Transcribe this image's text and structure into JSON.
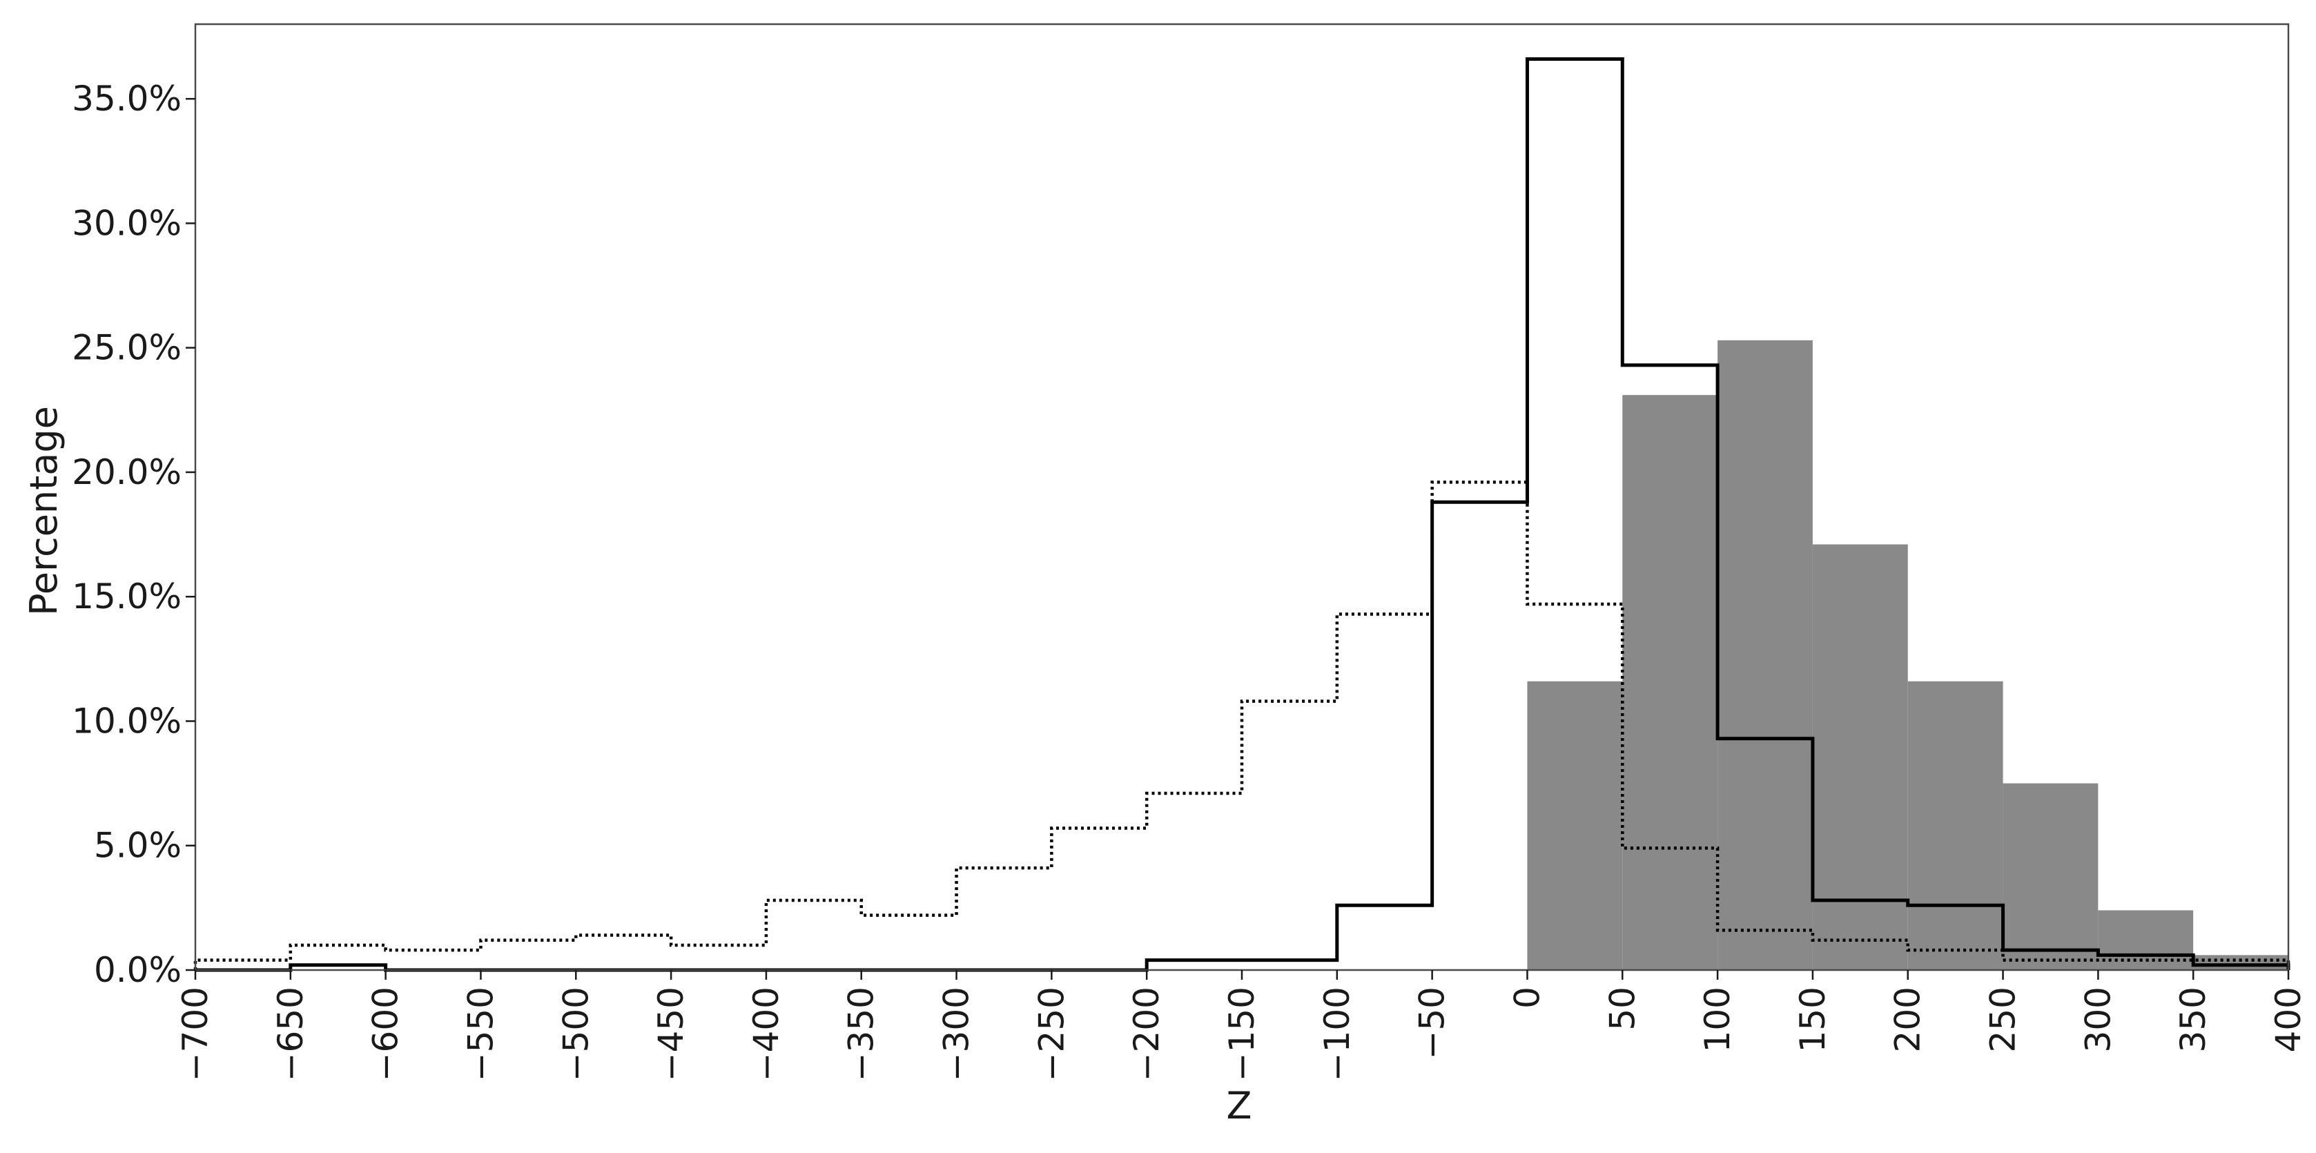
{
  "chart_data": {
    "type": "bar",
    "title": "",
    "xlabel": "Z",
    "ylabel": "Percentage",
    "xlim": [
      -700,
      400
    ],
    "ylim": [
      0,
      38
    ],
    "grid": false,
    "x_ticks": [
      "−700",
      "−650",
      "−600",
      "−550",
      "−500",
      "−450",
      "−400",
      "−350",
      "−300",
      "−250",
      "−200",
      "−150",
      "−100",
      "−50",
      "0",
      "50",
      "100",
      "150",
      "200",
      "250",
      "300",
      "350",
      "400"
    ],
    "x_tick_values": [
      -700,
      -650,
      -600,
      -550,
      -500,
      -450,
      -400,
      -350,
      -300,
      -250,
      -200,
      -150,
      -100,
      -50,
      0,
      50,
      100,
      150,
      200,
      250,
      300,
      350,
      400
    ],
    "y_ticks": [
      "0.0%",
      "5.0%",
      "10.0%",
      "15.0%",
      "20.0%",
      "25.0%",
      "30.0%",
      "35.0%"
    ],
    "y_tick_values": [
      0,
      5,
      10,
      15,
      20,
      25,
      30,
      35
    ],
    "bin_edges": [
      -700,
      -650,
      -600,
      -550,
      -500,
      -450,
      -400,
      -350,
      -300,
      -250,
      -200,
      -150,
      -100,
      -50,
      0,
      50,
      100,
      150,
      200,
      250,
      300,
      350,
      400
    ],
    "series": [
      {
        "style": "filled",
        "color": "#898989",
        "values": [
          0,
          0,
          0,
          0,
          0,
          0,
          0,
          0,
          0,
          0,
          0,
          0,
          0,
          0,
          11.6,
          23.1,
          25.3,
          17.1,
          11.6,
          7.5,
          2.4,
          0.6
        ]
      },
      {
        "style": "solid-step",
        "color": "#000000",
        "values": [
          0,
          0.2,
          0,
          0,
          0,
          0,
          0,
          0,
          0,
          0,
          0.4,
          0.4,
          2.6,
          18.8,
          36.6,
          24.3,
          9.3,
          2.8,
          2.6,
          0.8,
          0.6,
          0.2
        ]
      },
      {
        "style": "dotted-step",
        "color": "#000000",
        "values": [
          0.4,
          1.0,
          0.8,
          1.2,
          1.4,
          1.0,
          2.8,
          2.2,
          4.1,
          5.7,
          7.1,
          10.8,
          14.3,
          19.6,
          14.7,
          4.9,
          1.6,
          1.2,
          0.8,
          0.4,
          0.4,
          0.4
        ]
      }
    ]
  }
}
